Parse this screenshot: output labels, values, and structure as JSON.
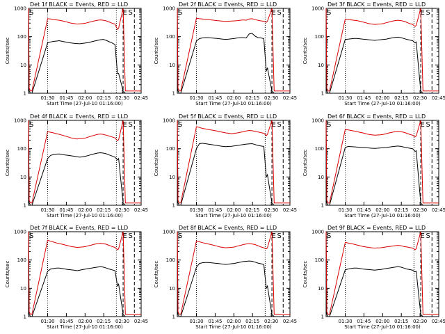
{
  "colors": {
    "events": "#000000",
    "lld": "#dd0000",
    "axes": "#000000"
  },
  "chart_data": [
    {
      "type": "line",
      "title": "Det 1f BLACK = Events, RED = LLD",
      "xlabel": "Start Time (27-Jul-10 01:16:00)",
      "ylabel": "Counts/sec",
      "y_scale": "log",
      "ylim": [
        1,
        1000
      ],
      "y_ticks": [
        "1",
        "10",
        "100",
        "1000"
      ],
      "x_ticks": [
        "01:30",
        "01:45",
        "02:00",
        "02:15",
        "02:30",
        "02:45"
      ],
      "markers": [
        "S",
        "E",
        "S"
      ],
      "series": [
        {
          "color": "black",
          "values": [
            1000,
            1.2,
            1.0,
            1.0,
            60,
            65,
            68,
            70,
            72,
            68,
            65,
            62,
            60,
            58,
            57,
            56,
            58,
            60,
            62,
            66,
            70,
            74,
            78,
            80,
            74,
            66,
            60,
            52,
            5,
            5,
            1.2,
            1.0,
            1.0,
            1.0,
            1.0
          ]
        },
        {
          "color": "red",
          "values": [
            1000,
            1.5,
            1.2,
            1.2,
            430,
            420,
            400,
            390,
            380,
            360,
            340,
            320,
            300,
            290,
            280,
            285,
            290,
            300,
            320,
            340,
            360,
            380,
            390,
            380,
            360,
            330,
            300,
            280,
            180,
            200,
            1000,
            1.2,
            1.2,
            1.2,
            1.2
          ]
        }
      ]
    },
    {
      "type": "line",
      "title": "Det 2f BLACK = Events, RED = LLD",
      "xlabel": "Start Time (27-Jul-10 01:16:00)",
      "ylabel": "Counts/sec",
      "y_scale": "log",
      "ylim": [
        1,
        1000
      ],
      "y_ticks": [
        "1",
        "10",
        "100",
        "1000"
      ],
      "x_ticks": [
        "01:30",
        "01:45",
        "02:00",
        "02:15",
        "02:30",
        "02:45"
      ],
      "markers": [
        "S",
        "E",
        "S"
      ],
      "series": [
        {
          "color": "black",
          "values": [
            1000,
            1.2,
            1.0,
            1.0,
            70,
            85,
            90,
            92,
            92,
            90,
            88,
            86,
            84,
            82,
            80,
            82,
            84,
            86,
            90,
            92,
            92,
            90,
            125,
            130,
            105,
            92,
            90,
            85,
            6,
            8,
            1.2,
            1.0,
            1.0,
            1.0,
            1.0
          ]
        },
        {
          "color": "red",
          "values": [
            1000,
            1.5,
            1.2,
            1.2,
            450,
            430,
            420,
            410,
            400,
            390,
            380,
            370,
            360,
            350,
            345,
            350,
            355,
            360,
            370,
            380,
            390,
            380,
            420,
            430,
            400,
            380,
            360,
            350,
            320,
            350,
            1000,
            1.2,
            1.2,
            1.2,
            1.2
          ]
        }
      ]
    },
    {
      "type": "line",
      "title": "Det 3f BLACK = Events, RED = LLD",
      "xlabel": "Start Time (27-Jul-10 01:16:00)",
      "ylabel": "Counts/sec",
      "y_scale": "log",
      "ylim": [
        1,
        1000
      ],
      "y_ticks": [
        "1",
        "10",
        "100",
        "1000"
      ],
      "x_ticks": [
        "01:30",
        "01:45",
        "02:00",
        "02:15",
        "02:30",
        "02:45"
      ],
      "markers": [
        "S",
        "E",
        "S"
      ],
      "series": [
        {
          "color": "black",
          "values": [
            1000,
            1.2,
            1.0,
            1.0,
            80,
            82,
            84,
            86,
            86,
            84,
            82,
            80,
            78,
            76,
            74,
            76,
            78,
            80,
            82,
            86,
            90,
            94,
            96,
            92,
            86,
            80,
            76,
            72,
            60,
            65,
            1.2,
            1.0,
            1.0,
            1.0,
            1.0
          ]
        },
        {
          "color": "red",
          "values": [
            1000,
            1.5,
            1.2,
            1.2,
            420,
            400,
            390,
            380,
            370,
            350,
            330,
            310,
            290,
            280,
            270,
            275,
            280,
            290,
            310,
            330,
            350,
            370,
            380,
            370,
            350,
            320,
            290,
            270,
            230,
            250,
            1000,
            1.2,
            1.2,
            1.2,
            1.2
          ]
        }
      ]
    },
    {
      "type": "line",
      "title": "Det 4f BLACK = Events, RED = LLD",
      "xlabel": "Start Time (27-Jul-10 01:16:00)",
      "ylabel": "Counts/sec",
      "y_scale": "log",
      "ylim": [
        1,
        1000
      ],
      "y_ticks": [
        "1",
        "10",
        "100",
        "1000"
      ],
      "x_ticks": [
        "01:30",
        "01:45",
        "02:00",
        "02:15",
        "02:30",
        "02:45"
      ],
      "markers": [
        "S",
        "E",
        "S"
      ],
      "series": [
        {
          "color": "black",
          "values": [
            1000,
            1.2,
            1.0,
            1.0,
            45,
            58,
            62,
            64,
            65,
            62,
            60,
            58,
            56,
            54,
            52,
            50,
            52,
            54,
            58,
            62,
            66,
            70,
            72,
            70,
            66,
            60,
            55,
            50,
            40,
            45,
            1.2,
            1.0,
            1.0,
            1.0,
            1.0
          ]
        },
        {
          "color": "red",
          "values": [
            1000,
            1.5,
            1.2,
            1.2,
            400,
            380,
            360,
            340,
            320,
            300,
            280,
            260,
            240,
            230,
            220,
            225,
            230,
            240,
            260,
            280,
            300,
            320,
            330,
            320,
            300,
            280,
            260,
            240,
            190,
            210,
            1000,
            1.2,
            1.2,
            1.2,
            1.2
          ]
        }
      ]
    },
    {
      "type": "line",
      "title": "Det 5f BLACK = Events, RED = LLD",
      "xlabel": "Start Time (27-Jul-10 01:16:00)",
      "ylabel": "Counts/sec",
      "y_scale": "log",
      "ylim": [
        1,
        1000
      ],
      "y_ticks": [
        "1",
        "10",
        "100",
        "1000"
      ],
      "x_ticks": [
        "01:30",
        "01:45",
        "02:00",
        "02:15",
        "02:30",
        "02:45"
      ],
      "markers": [
        "S",
        "E",
        "S"
      ],
      "series": [
        {
          "color": "black",
          "values": [
            1000,
            1.2,
            1.0,
            1.0,
            100,
            150,
            155,
            150,
            145,
            140,
            135,
            130,
            125,
            120,
            118,
            120,
            122,
            126,
            130,
            135,
            140,
            145,
            148,
            150,
            140,
            130,
            125,
            120,
            10,
            12,
            1.2,
            1.0,
            1.0,
            1.0,
            1.0
          ]
        },
        {
          "color": "red",
          "values": [
            1000,
            1.5,
            1.2,
            1.2,
            600,
            560,
            520,
            500,
            480,
            460,
            440,
            420,
            400,
            380,
            360,
            350,
            340,
            350,
            360,
            380,
            400,
            420,
            440,
            430,
            410,
            390,
            370,
            350,
            290,
            320,
            1000,
            1.2,
            1.2,
            1.2,
            1.2
          ]
        }
      ]
    },
    {
      "type": "line",
      "title": "Det 6f BLACK = Events, RED = LLD",
      "xlabel": "Start Time (27-Jul-10 01:16:00)",
      "ylabel": "Counts/sec",
      "y_scale": "log",
      "ylim": [
        1,
        1000
      ],
      "y_ticks": [
        "1",
        "10",
        "100",
        "1000"
      ],
      "x_ticks": [
        "01:30",
        "01:45",
        "02:00",
        "02:15",
        "02:30",
        "02:45"
      ],
      "markers": [
        "S",
        "E",
        "S"
      ],
      "series": [
        {
          "color": "black",
          "values": [
            1000,
            1.2,
            1.0,
            1.0,
            110,
            120,
            118,
            116,
            114,
            112,
            110,
            108,
            106,
            104,
            102,
            104,
            106,
            108,
            110,
            114,
            118,
            122,
            124,
            120,
            114,
            108,
            104,
            100,
            80,
            85,
            1.2,
            1.0,
            1.0,
            1.0,
            1.0
          ]
        },
        {
          "color": "red",
          "values": [
            1000,
            1.5,
            1.2,
            1.2,
            480,
            460,
            440,
            420,
            400,
            380,
            360,
            340,
            320,
            310,
            300,
            305,
            310,
            320,
            340,
            360,
            380,
            400,
            410,
            400,
            380,
            350,
            320,
            300,
            260,
            280,
            1000,
            1.2,
            1.2,
            1.2,
            1.2
          ]
        }
      ]
    },
    {
      "type": "line",
      "title": "Det 7f BLACK = Events, RED = LLD",
      "xlabel": "Start Time (27-Jul-10 01:16:00)",
      "ylabel": "Counts/sec",
      "y_scale": "log",
      "ylim": [
        1,
        1000
      ],
      "y_ticks": [
        "1",
        "10",
        "100",
        "1000"
      ],
      "x_ticks": [
        "01:30",
        "01:45",
        "02:00",
        "02:15",
        "02:30",
        "02:45"
      ],
      "markers": [
        "S",
        "E",
        "S"
      ],
      "series": [
        {
          "color": "black",
          "values": [
            1000,
            1.2,
            1.0,
            1.0,
            40,
            48,
            50,
            52,
            52,
            50,
            48,
            46,
            45,
            44,
            42,
            44,
            46,
            48,
            50,
            52,
            54,
            56,
            58,
            56,
            52,
            48,
            45,
            42,
            12,
            14,
            1.2,
            1.0,
            1.0,
            1.0,
            1.0
          ]
        },
        {
          "color": "red",
          "values": [
            1000,
            1.5,
            1.2,
            1.2,
            500,
            460,
            430,
            400,
            380,
            360,
            340,
            320,
            300,
            290,
            280,
            285,
            290,
            300,
            320,
            340,
            360,
            380,
            390,
            380,
            360,
            330,
            300,
            280,
            230,
            250,
            1000,
            1.2,
            1.2,
            1.2,
            1.2
          ]
        }
      ]
    },
    {
      "type": "line",
      "title": "Det 8f BLACK = Events, RED = LLD",
      "xlabel": "Start Time (27-Jul-10 01:16:00)",
      "ylabel": "Counts/sec",
      "y_scale": "log",
      "ylim": [
        1,
        1000
      ],
      "y_ticks": [
        "1",
        "10",
        "100",
        "1000"
      ],
      "x_ticks": [
        "01:30",
        "01:45",
        "02:00",
        "02:15",
        "02:30",
        "02:45"
      ],
      "markers": [
        "S",
        "E",
        "S"
      ],
      "series": [
        {
          "color": "black",
          "values": [
            1000,
            1.2,
            1.0,
            1.0,
            55,
            75,
            80,
            82,
            82,
            80,
            78,
            76,
            74,
            72,
            70,
            72,
            74,
            76,
            80,
            84,
            88,
            90,
            92,
            90,
            84,
            78,
            74,
            70,
            10,
            12,
            1.2,
            1.0,
            1.0,
            1.0,
            1.0
          ]
        },
        {
          "color": "red",
          "values": [
            1000,
            1.5,
            1.2,
            1.2,
            470,
            440,
            410,
            390,
            370,
            350,
            330,
            310,
            290,
            280,
            270,
            275,
            280,
            290,
            310,
            330,
            350,
            370,
            380,
            370,
            350,
            320,
            290,
            270,
            250,
            270,
            1000,
            1.2,
            1.2,
            1.2,
            1.2
          ]
        }
      ]
    },
    {
      "type": "line",
      "title": "Det 9f BLACK = Events, RED = LLD",
      "xlabel": "Start Time (27-Jul-10 01:16:00)",
      "ylabel": "Counts/sec",
      "y_scale": "log",
      "ylim": [
        1,
        1000
      ],
      "y_ticks": [
        "1",
        "10",
        "100",
        "1000"
      ],
      "x_ticks": [
        "01:30",
        "01:45",
        "02:00",
        "02:15",
        "02:30",
        "02:45"
      ],
      "markers": [
        "S",
        "E",
        "S"
      ],
      "series": [
        {
          "color": "black",
          "values": [
            1000,
            1.2,
            1.0,
            1.0,
            45,
            48,
            50,
            52,
            52,
            50,
            48,
            47,
            46,
            45,
            44,
            45,
            46,
            48,
            50,
            52,
            54,
            56,
            58,
            56,
            52,
            48,
            46,
            44,
            38,
            40,
            1.2,
            1.0,
            1.0,
            1.0,
            1.0
          ]
        },
        {
          "color": "red",
          "values": [
            1000,
            1.5,
            1.2,
            1.2,
            420,
            400,
            380,
            360,
            340,
            320,
            300,
            290,
            280,
            270,
            265,
            268,
            270,
            280,
            290,
            300,
            310,
            320,
            330,
            320,
            300,
            290,
            275,
            265,
            230,
            250,
            1000,
            1.2,
            1.2,
            1.2,
            1.2
          ]
        }
      ]
    }
  ]
}
